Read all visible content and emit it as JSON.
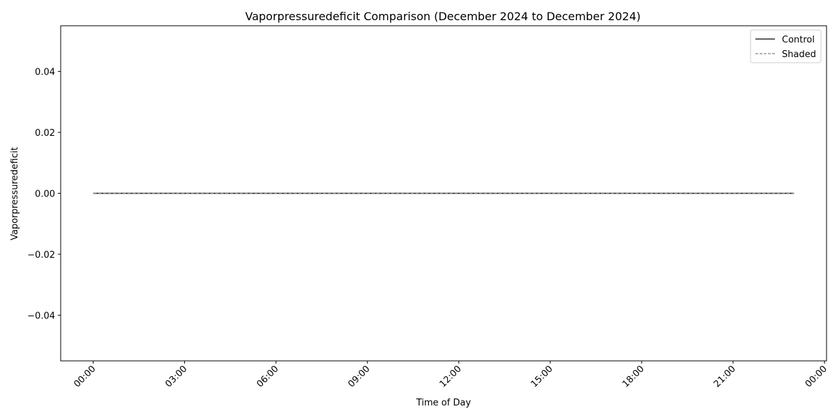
{
  "chart_data": {
    "type": "line",
    "title": "Vaporpressuredeficit Comparison (December 2024 to December 2024)",
    "xlabel": "Time of Day",
    "ylabel": "Vaporpressuredeficit",
    "xlim": [
      "2024-12-01T22:56",
      "2024-12-03T00:04"
    ],
    "ylim": [
      -0.055,
      0.055
    ],
    "x_ticks": [
      "00:00",
      "03:00",
      "06:00",
      "09:00",
      "12:00",
      "15:00",
      "18:00",
      "21:00",
      "00:00"
    ],
    "y_ticks": [
      "−0.04",
      "−0.02",
      "0.00",
      "0.02",
      "0.04"
    ],
    "y_tick_values": [
      -0.04,
      -0.02,
      0.0,
      0.02,
      0.04
    ],
    "grid": false,
    "legend_position": "top-right",
    "series": [
      {
        "name": "Control",
        "color": "#000000",
        "style": "solid",
        "x": [
          "00:00",
          "23:00"
        ],
        "y": [
          0.0,
          0.0
        ]
      },
      {
        "name": "Shaded",
        "color": "#808080",
        "style": "dashed",
        "x": [
          "00:00",
          "23:00"
        ],
        "y": [
          0.0,
          0.0
        ]
      }
    ]
  }
}
